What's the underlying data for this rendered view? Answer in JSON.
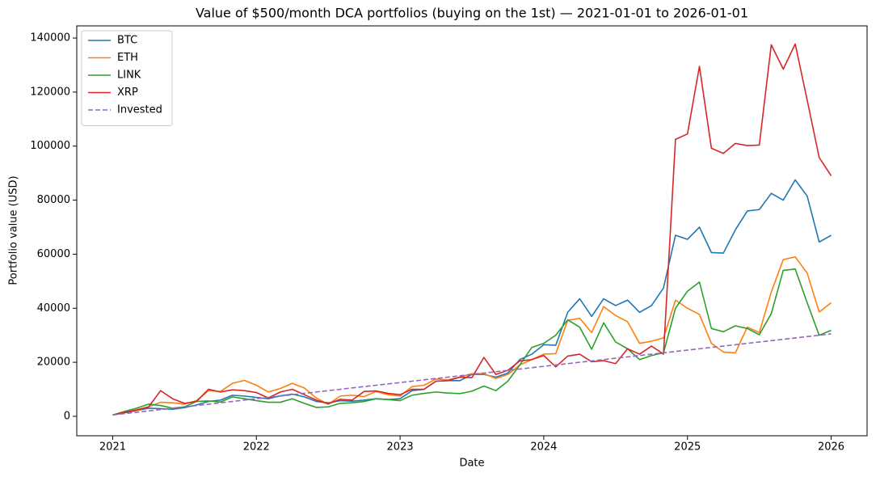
{
  "chart_data": {
    "type": "line",
    "title": "Value of $500/month DCA portfolios (buying on the 1st) — 2021-01-01 to 2026-01-01",
    "xlabel": "Date",
    "ylabel": "Portfolio value (USD)",
    "x": [
      "2021-01",
      "2021-02",
      "2021-03",
      "2021-04",
      "2021-05",
      "2021-06",
      "2021-07",
      "2021-08",
      "2021-09",
      "2021-10",
      "2021-11",
      "2021-12",
      "2022-01",
      "2022-02",
      "2022-03",
      "2022-04",
      "2022-05",
      "2022-06",
      "2022-07",
      "2022-08",
      "2022-09",
      "2022-10",
      "2022-11",
      "2022-12",
      "2023-01",
      "2023-02",
      "2023-03",
      "2023-04",
      "2023-05",
      "2023-06",
      "2023-07",
      "2023-08",
      "2023-09",
      "2023-10",
      "2023-11",
      "2023-12",
      "2024-01",
      "2024-02",
      "2024-03",
      "2024-04",
      "2024-05",
      "2024-06",
      "2024-07",
      "2024-08",
      "2024-09",
      "2024-10",
      "2024-11",
      "2024-12",
      "2025-01",
      "2025-02",
      "2025-03",
      "2025-04",
      "2025-05",
      "2025-06",
      "2025-07",
      "2025-08",
      "2025-09",
      "2025-10",
      "2025-11",
      "2025-12",
      "2026-01"
    ],
    "xlim": [
      "2020-10",
      "2026-04"
    ],
    "xticks": [
      {
        "value": "2021-01",
        "label": "2021"
      },
      {
        "value": "2022-01",
        "label": "2022"
      },
      {
        "value": "2023-01",
        "label": "2023"
      },
      {
        "value": "2024-01",
        "label": "2024"
      },
      {
        "value": "2025-01",
        "label": "2025"
      },
      {
        "value": "2026-01",
        "label": "2026"
      }
    ],
    "ylim": [
      -7200,
      144500
    ],
    "yticks": [
      0,
      20000,
      40000,
      60000,
      80000,
      100000,
      120000,
      140000
    ],
    "legend": "upper left",
    "series": [
      {
        "name": "BTC",
        "color": "#1f77b4",
        "linestyle": "solid",
        "values": [
          500,
          1300,
          2200,
          3000,
          2800,
          2600,
          3200,
          4200,
          5500,
          6000,
          7800,
          7500,
          7000,
          6500,
          7600,
          8200,
          7200,
          5500,
          5000,
          5800,
          5600,
          6000,
          6500,
          6200,
          6500,
          9500,
          10000,
          13000,
          13200,
          13200,
          15500,
          15500,
          14500,
          16000,
          21000,
          23000,
          26500,
          26300,
          38500,
          43500,
          37000,
          43500,
          41000,
          43000,
          38500,
          41000,
          47500,
          67000,
          65500,
          70000,
          60600,
          60400,
          69000,
          76000,
          76500,
          82500,
          80000,
          87500,
          81500,
          64500,
          67000
        ]
      },
      {
        "name": "ETH",
        "color": "#ff7f0e",
        "linestyle": "solid",
        "values": [
          500,
          1500,
          2500,
          3500,
          5200,
          5000,
          4500,
          5800,
          9500,
          9200,
          12200,
          13300,
          11500,
          9000,
          10300,
          12200,
          10500,
          6800,
          4500,
          7500,
          7800,
          7300,
          9200,
          8000,
          7500,
          11000,
          11500,
          13800,
          13500,
          14500,
          15800,
          15800,
          14000,
          15500,
          19000,
          21000,
          23000,
          23200,
          35500,
          36300,
          31000,
          40600,
          37300,
          35000,
          27000,
          27800,
          29000,
          43000,
          40000,
          37700,
          27000,
          23800,
          23500,
          33000,
          31000,
          46000,
          58000,
          59000,
          53000,
          38600,
          42000
        ]
      },
      {
        "name": "LINK",
        "color": "#2ca02c",
        "linestyle": "solid",
        "values": [
          500,
          1800,
          3000,
          4500,
          4000,
          3000,
          3500,
          5500,
          5700,
          5300,
          7200,
          6500,
          5800,
          5200,
          5200,
          6500,
          4800,
          3300,
          3500,
          4800,
          5000,
          5500,
          6500,
          6200,
          5800,
          7800,
          8500,
          9000,
          8600,
          8400,
          9300,
          11200,
          9500,
          13000,
          19000,
          25500,
          27000,
          30000,
          35700,
          33000,
          24800,
          34600,
          27500,
          25000,
          21000,
          22500,
          23500,
          40000,
          46300,
          49700,
          32500,
          31300,
          33500,
          32500,
          30200,
          38000,
          54000,
          54500,
          42000,
          30000,
          31800
        ]
      },
      {
        "name": "XRP",
        "color": "#d62728",
        "linestyle": "solid",
        "values": [
          500,
          1500,
          2200,
          3500,
          9500,
          6500,
          4800,
          5500,
          10000,
          9000,
          9800,
          9500,
          8800,
          6800,
          9000,
          10000,
          8000,
          6000,
          4600,
          6300,
          6000,
          9200,
          9400,
          8500,
          8000,
          10000,
          10000,
          13000,
          13200,
          14500,
          14300,
          21800,
          15500,
          17000,
          20500,
          21000,
          22500,
          18300,
          22300,
          23000,
          20200,
          20600,
          19500,
          25000,
          23000,
          26000,
          23000,
          102500,
          104500,
          129500,
          99200,
          97300,
          101000,
          100200,
          100400,
          137500,
          128500,
          137800,
          117000,
          95800,
          89000
        ]
      },
      {
        "name": "Invested",
        "color": "#9467bd",
        "linestyle": "dashed",
        "values": [
          500,
          1000,
          1500,
          2000,
          2500,
          3000,
          3500,
          4000,
          4500,
          5000,
          5500,
          6000,
          6500,
          7000,
          7500,
          8000,
          8500,
          9000,
          9500,
          10000,
          10500,
          11000,
          11500,
          12000,
          12500,
          13000,
          13500,
          14000,
          14500,
          15000,
          15500,
          16000,
          16500,
          17000,
          17500,
          18000,
          18500,
          19000,
          19500,
          20000,
          20500,
          21000,
          21500,
          22000,
          22500,
          23000,
          23500,
          24000,
          24500,
          25000,
          25500,
          26000,
          26500,
          27000,
          27500,
          28000,
          28500,
          29000,
          29500,
          30000,
          30500
        ]
      }
    ]
  }
}
